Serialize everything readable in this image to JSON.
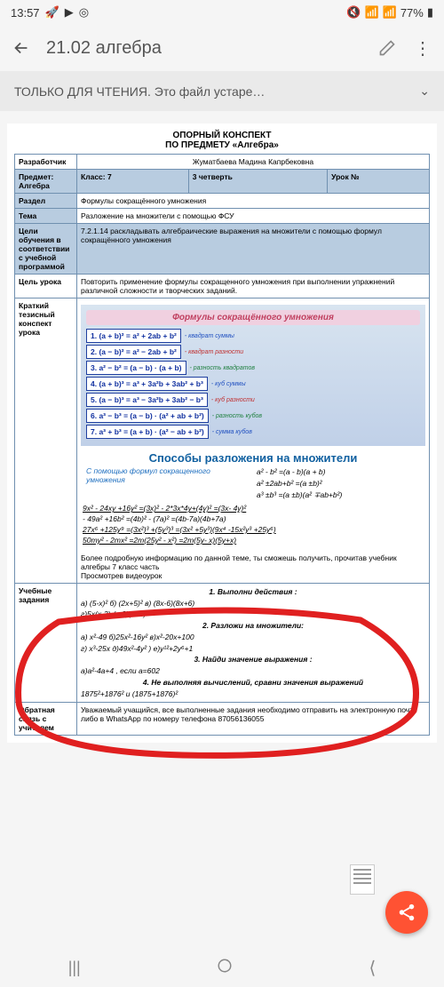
{
  "status": {
    "time": "13:57",
    "battery": "77%"
  },
  "app": {
    "title": "21.02 алгебра"
  },
  "readonly": {
    "text": "ТОЛЬКО ДЛЯ ЧТЕНИЯ. Это файл устаре…"
  },
  "doc": {
    "title1": "ОПОРНЫЙ КОНСПЕКТ",
    "title2": "ПО ПРЕДМЕТУ «Алгебра»",
    "developer_label": "Разработчик",
    "developer": "Жуматбаева Мадина Капрбековна",
    "subject_label": "Предмет: Алгебра",
    "class_label": "Класс: 7",
    "quarter_label": "3 четверть",
    "lesson_label": "Урок №",
    "section_label": "Раздел",
    "section": "Формулы сокращённого умножения",
    "topic_label": "Тема",
    "topic": "Разложение на множители с помощью ФСУ",
    "goals_label": "Цели обучения в соответствии с учебной программой",
    "goals": "7.2.1.14 раскладывать алгебраические выражения на множители с помощью формул сокращённого умножения",
    "lesson_goal_label": "Цель урока",
    "lesson_goal": "Повторить применение формулы сокращенного умножения при выполнении упражнений различной сложности и творческих заданий.",
    "brief_label": "Краткий тезисный конспект урока",
    "formulas_title": "Формулы сокращённого умножения",
    "formulas": [
      {
        "f": "1.  (a + b)² = a² + 2ab + b²",
        "l": "- квадрат суммы",
        "c": "fl-blue"
      },
      {
        "f": "2.  (a − b)² = a² − 2ab + b²",
        "l": "- квадрат разности",
        "c": "fl-red"
      },
      {
        "f": "3.  a² − b² = (a − b) · (a + b)",
        "l": "- разность квадратов",
        "c": "fl-green"
      },
      {
        "f": "4.  (a + b)³ = a³ + 3a²b + 3ab² + b³",
        "l": "- куб суммы",
        "c": "fl-blue"
      },
      {
        "f": "5.  (a − b)³ = a³ − 3a²b + 3ab² − b³",
        "l": "- куб разности",
        "c": "fl-red"
      },
      {
        "f": "6.  a³ − b³ = (a − b) · (a² + ab + b²)",
        "l": "- разность кубов",
        "c": "fl-green"
      },
      {
        "f": "7.  a³ + b³ = (a + b) · (a² − ab + b²)",
        "l": "- сумма кубов",
        "c": "fl-blue"
      }
    ],
    "methods_title": "Способы разложения на множители",
    "methods_left": "С помощью формул сокращенного умножения",
    "methods_right1": "a² - b² =(a - b)(a + b)",
    "methods_right2": "a² ±2ab+b² =(a ±b)²",
    "methods_right3": "a³ ±b³ =(a ±b)(a² ∓ab+b²)",
    "ex1": "9x² - 24xy +16y² =(3x)² - 2*3x*4y+(4y)² =(3x- 4y)²",
    "ex2": "- 49a² +16b² =(4b)² - (7a)² =(4b-7a)(4b+7a)",
    "ex3": "27x⁶ +125y⁹ =(3x²)³ +(5y³)³ =(3x² +5y³)(9x⁴ -15x²y³ +25y⁶)",
    "ex4": "50my² - 2mx² =2m(25y² - x²) =2m(5y- x)(5y+x)",
    "more_info": "Более подробную информацию по данной теме, ты сможешь получить, прочитав учебник алгебры 7 класс часть",
    "watch": "Просмотрев видеоурок",
    "tasks_label": "Учебные задания",
    "t1": "1. Выполни действия :",
    "t1a": "а) (5-x)²        б) (2x+5)²        в) (8x-6)(8x+6)",
    "t1b": "г)5x(x-3)-(x-8)(x+8)",
    "t2": "2. Разложи на множители:",
    "t2a": "а) x²-49        б)25x²-16y²        в)x²-20x+100",
    "t2b": "г) x³-25x    д)49х²-4у²    ) е)у¹²+2у⁶+1",
    "t3": "3. Найди значение выражения :",
    "t3a": "а)a²-4a+4 , если a=602",
    "t4": "4. Не выполняя вычислений, сравни значения выражений",
    "t4a": "1875²+1876² и (1875+1876)²",
    "feedback_label": "Обратная связь с учителем",
    "feedback": "Уважаемый учащийся, все выполненные задания необходимо отправить на электронную почту",
    "feedback2": "либо в WhatsApp по номеру телефона 87056136055"
  }
}
